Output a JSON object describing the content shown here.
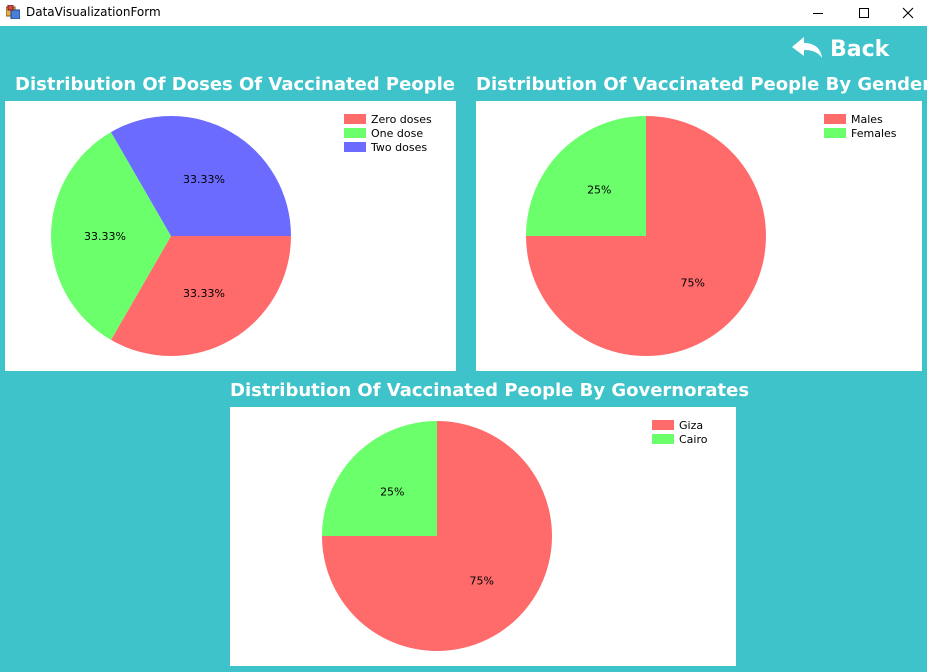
{
  "window": {
    "title": "DataVisualizationForm"
  },
  "back_button": {
    "label": "Back",
    "icon": "back-arrow-icon"
  },
  "charts": [
    {
      "title": "Distribution Of Doses Of Vaccinated People",
      "chart_data": {
        "type": "pie",
        "slices": [
          {
            "name": "Zero doses",
            "value": 33.33,
            "label": "33.33%",
            "color": "#ff6b6b"
          },
          {
            "name": "One dose",
            "value": 33.33,
            "label": "33.33%",
            "color": "#6bff6b"
          },
          {
            "name": "Two doses",
            "value": 33.33,
            "label": "33.33%",
            "color": "#6b6bff"
          }
        ],
        "legend_position": "top-right"
      }
    },
    {
      "title": "Distribution Of Vaccinated People By Gender",
      "chart_data": {
        "type": "pie",
        "slices": [
          {
            "name": "Males",
            "value": 75,
            "label": "75%",
            "color": "#ff6b6b"
          },
          {
            "name": "Females",
            "value": 25,
            "label": "25%",
            "color": "#6bff6b"
          }
        ],
        "legend_position": "top-right"
      }
    },
    {
      "title": "Distribution Of Vaccinated People By Governorates",
      "chart_data": {
        "type": "pie",
        "slices": [
          {
            "name": "Giza",
            "value": 75,
            "label": "75%",
            "color": "#ff6b6b"
          },
          {
            "name": "Cairo",
            "value": 25,
            "label": "25%",
            "color": "#6bff6b"
          }
        ],
        "legend_position": "top-right"
      }
    }
  ]
}
